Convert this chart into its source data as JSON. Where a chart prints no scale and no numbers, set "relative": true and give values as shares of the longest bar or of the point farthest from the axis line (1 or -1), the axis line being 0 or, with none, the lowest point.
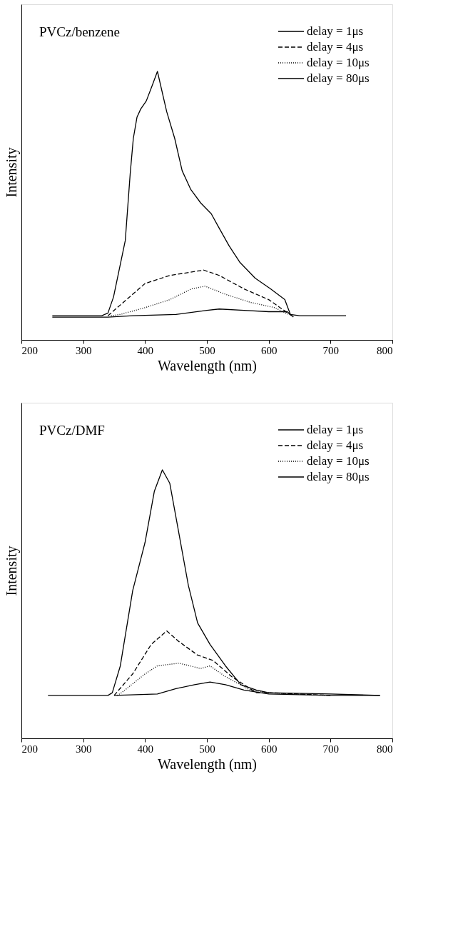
{
  "chart_data": [
    {
      "type": "line",
      "relative": true,
      "annotations": [
        "PVCz/benzene"
      ],
      "xlabel": "Wavelength (nm)",
      "ylabel": "Intensity",
      "xlim": [
        200,
        800
      ],
      "xticks": [
        200,
        300,
        400,
        500,
        600,
        700,
        800
      ],
      "grid": false,
      "legend": "top right",
      "marker": "none",
      "series": [
        {
          "name": "delay = 1μs",
          "color": "#000000",
          "line_style": "solid",
          "x": [
            250,
            330,
            340,
            349,
            368,
            376,
            381,
            387,
            393,
            402,
            412,
            420,
            435,
            448,
            460,
            474,
            490,
            507,
            519,
            536,
            553,
            578,
            603,
            626,
            635,
            650,
            725
          ],
          "values": [
            0.09,
            0.09,
            0.1,
            0.16,
            0.37,
            0.62,
            0.75,
            0.83,
            0.86,
            0.89,
            0.95,
            1.0,
            0.85,
            0.75,
            0.63,
            0.56,
            0.51,
            0.47,
            0.42,
            0.35,
            0.29,
            0.23,
            0.19,
            0.15,
            0.095,
            0.09,
            0.09
          ]
        },
        {
          "name": "delay = 4μs",
          "color": "#000000",
          "line_style": "dashed",
          "x": [
            340,
            360,
            380,
            400,
            440,
            495,
            520,
            560,
            600,
            637
          ],
          "values": [
            0.09,
            0.13,
            0.17,
            0.21,
            0.24,
            0.26,
            0.24,
            0.19,
            0.15,
            0.09
          ]
        },
        {
          "name": "delay = 10μs",
          "color": "#000000",
          "line_style": "dotted",
          "x": [
            345,
            360,
            400,
            440,
            475,
            497,
            530,
            570,
            610,
            632
          ],
          "values": [
            0.09,
            0.095,
            0.12,
            0.15,
            0.19,
            0.2,
            0.17,
            0.14,
            0.12,
            0.095
          ]
        },
        {
          "name": "delay = 80μs",
          "color": "#000000",
          "line_style": "solid",
          "x": [
            250,
            340,
            380,
            450,
            500,
            520,
            560,
            600,
            630,
            640
          ],
          "values": [
            0.085,
            0.085,
            0.09,
            0.095,
            0.11,
            0.115,
            0.11,
            0.105,
            0.105,
            0.085
          ]
        }
      ]
    },
    {
      "type": "line",
      "relative": true,
      "annotations": [
        "PVCz/DMF"
      ],
      "xlabel": "Wavelength (nm)",
      "ylabel": "Intensity",
      "xlim": [
        200,
        800
      ],
      "xticks": [
        200,
        300,
        400,
        500,
        600,
        700,
        800
      ],
      "grid": false,
      "legend": "top right",
      "marker": "none",
      "series": [
        {
          "name": "delay = 1μs",
          "color": "#000000",
          "line_style": "solid",
          "x": [
            243,
            340,
            347,
            360,
            380,
            400,
            415,
            428,
            440,
            455,
            470,
            485,
            505,
            530,
            555,
            580,
            600,
            700,
            780
          ],
          "values": [
            0.16,
            0.16,
            0.17,
            0.27,
            0.55,
            0.73,
            0.92,
            1.0,
            0.95,
            0.76,
            0.57,
            0.43,
            0.35,
            0.27,
            0.2,
            0.18,
            0.17,
            0.165,
            0.16
          ]
        },
        {
          "name": "delay = 4μs",
          "color": "#000000",
          "line_style": "dashed",
          "x": [
            350,
            380,
            410,
            435,
            455,
            485,
            510,
            540,
            580,
            600,
            700
          ],
          "values": [
            0.16,
            0.24,
            0.35,
            0.4,
            0.36,
            0.31,
            0.29,
            0.23,
            0.17,
            0.17,
            0.16
          ]
        },
        {
          "name": "delay = 10μs",
          "color": "#000000",
          "line_style": "dotted",
          "x": [
            355,
            362,
            400,
            420,
            455,
            490,
            505,
            530,
            570,
            600,
            690
          ],
          "values": [
            0.16,
            0.17,
            0.24,
            0.27,
            0.28,
            0.26,
            0.27,
            0.23,
            0.18,
            0.17,
            0.16
          ]
        },
        {
          "name": "delay = 80μs",
          "color": "#000000",
          "line_style": "solid",
          "x": [
            350,
            420,
            450,
            480,
            505,
            530,
            560,
            600,
            700,
            780
          ],
          "values": [
            0.16,
            0.165,
            0.185,
            0.2,
            0.21,
            0.2,
            0.18,
            0.165,
            0.16,
            0.16
          ]
        }
      ]
    }
  ]
}
